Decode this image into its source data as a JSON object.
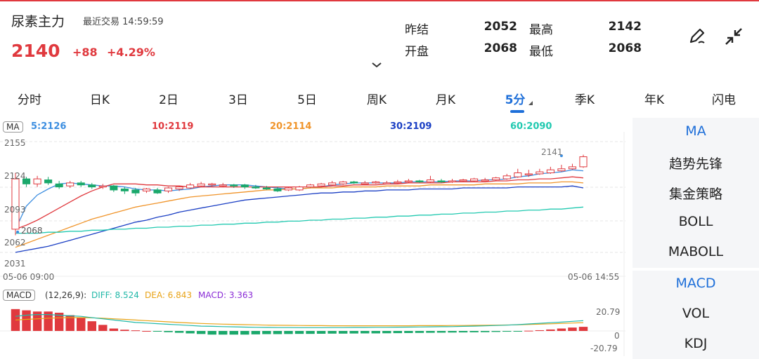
{
  "header": {
    "title": "尿素主力",
    "status": "最近交易  14:59:59",
    "price": "2140",
    "change": "+88",
    "change_pct": "+4.29%",
    "quote": {
      "prev_settle_label": "昨结",
      "prev_settle": "2052",
      "open_label": "开盘",
      "open": "2068",
      "high_label": "最高",
      "high": "2142",
      "low_label": "最低",
      "low": "2068"
    },
    "expand_icon": "chevron-down-icon",
    "draw_icon": "pen-icon",
    "collapse_icon": "shrink-icon"
  },
  "tabs": [
    "分时",
    "日K",
    "2日",
    "3日",
    "5日",
    "周K",
    "月K",
    "5分",
    "季K",
    "年K",
    "闪电"
  ],
  "active_tab": "5分",
  "ma_legend": {
    "badge": "MA",
    "items": [
      {
        "label": "5:2126",
        "color": "#3c8ee0"
      },
      {
        "label": "10:2119",
        "color": "#e0393e"
      },
      {
        "label": "20:2114",
        "color": "#f0942a"
      },
      {
        "label": "30:2109",
        "color": "#1b3fc4"
      },
      {
        "label": "60:2090",
        "color": "#21c9b0"
      }
    ]
  },
  "price_axis": {
    "top": "2155",
    "mid": "2124",
    "low1": "2093",
    "low2": "2062",
    "bottom": "2031"
  },
  "annotations": {
    "last": "2141",
    "low": "2068"
  },
  "time_axis": {
    "start": "05-06 09:00",
    "end": "05-06 14:55"
  },
  "macd_legend": {
    "badge": "MACD",
    "params": "(12,26,9):",
    "diff": "DIFF: 8.524",
    "dea": "DEA: 6.843",
    "macd": "MACD: 3.363",
    "diff_color": "#21b8a8",
    "dea_color": "#e8a317",
    "macd_color": "#8a2bd6"
  },
  "macd_axis": {
    "top": "20.79",
    "zero": "0",
    "bottom": "-20.79"
  },
  "side_panel": {
    "main": [
      "MA",
      "趋势先锋",
      "集金策略",
      "BOLL",
      "MABOLL"
    ],
    "sub": [
      "MACD",
      "VOL",
      "KDJ"
    ],
    "active_main": "MA",
    "active_sub": "MACD"
  },
  "colors": {
    "up": "#e0393e",
    "down": "#1aa86b",
    "accent": "#1e6fd9"
  },
  "chart_data": {
    "type": "candlestick",
    "ylim": [
      2031,
      2155
    ],
    "candles": [
      {
        "o": 2068,
        "c": 2118,
        "h": 2124,
        "l": 2062
      },
      {
        "o": 2118,
        "c": 2113,
        "h": 2120,
        "l": 2110
      },
      {
        "o": 2113,
        "c": 2118,
        "h": 2121,
        "l": 2110
      },
      {
        "o": 2117,
        "c": 2114,
        "h": 2120,
        "l": 2112
      },
      {
        "o": 2113,
        "c": 2110,
        "h": 2116,
        "l": 2108
      },
      {
        "o": 2111,
        "c": 2114,
        "h": 2116,
        "l": 2109
      },
      {
        "o": 2114,
        "c": 2112,
        "h": 2116,
        "l": 2110
      },
      {
        "o": 2112,
        "c": 2110,
        "h": 2114,
        "l": 2108
      },
      {
        "o": 2110,
        "c": 2111,
        "h": 2113,
        "l": 2108
      },
      {
        "o": 2111,
        "c": 2107,
        "h": 2112,
        "l": 2105
      },
      {
        "o": 2108,
        "c": 2106,
        "h": 2110,
        "l": 2103
      },
      {
        "o": 2107,
        "c": 2104,
        "h": 2109,
        "l": 2101
      },
      {
        "o": 2106,
        "c": 2108,
        "h": 2109,
        "l": 2104
      },
      {
        "o": 2107,
        "c": 2104,
        "h": 2109,
        "l": 2103
      },
      {
        "o": 2106,
        "c": 2109,
        "h": 2110,
        "l": 2104
      },
      {
        "o": 2108,
        "c": 2110,
        "h": 2111,
        "l": 2106
      },
      {
        "o": 2109,
        "c": 2112,
        "h": 2114,
        "l": 2108
      },
      {
        "o": 2111,
        "c": 2113,
        "h": 2115,
        "l": 2110
      },
      {
        "o": 2112,
        "c": 2113,
        "h": 2114,
        "l": 2110
      },
      {
        "o": 2112,
        "c": 2112,
        "h": 2114,
        "l": 2110
      },
      {
        "o": 2112,
        "c": 2111,
        "h": 2113,
        "l": 2109
      },
      {
        "o": 2112,
        "c": 2110,
        "h": 2113,
        "l": 2108
      },
      {
        "o": 2110,
        "c": 2109,
        "h": 2112,
        "l": 2108
      },
      {
        "o": 2109,
        "c": 2108,
        "h": 2111,
        "l": 2107
      },
      {
        "o": 2108,
        "c": 2106,
        "h": 2110,
        "l": 2105
      },
      {
        "o": 2107,
        "c": 2109,
        "h": 2110,
        "l": 2106
      },
      {
        "o": 2107,
        "c": 2110,
        "h": 2111,
        "l": 2106
      },
      {
        "o": 2110,
        "c": 2112,
        "h": 2113,
        "l": 2109
      },
      {
        "o": 2111,
        "c": 2113,
        "h": 2114,
        "l": 2110
      },
      {
        "o": 2112,
        "c": 2114,
        "h": 2116,
        "l": 2111
      },
      {
        "o": 2113,
        "c": 2115,
        "h": 2116,
        "l": 2112
      },
      {
        "o": 2115,
        "c": 2114,
        "h": 2116,
        "l": 2113
      },
      {
        "o": 2114,
        "c": 2114,
        "h": 2116,
        "l": 2113
      },
      {
        "o": 2114,
        "c": 2115,
        "h": 2116,
        "l": 2113
      },
      {
        "o": 2114,
        "c": 2114,
        "h": 2116,
        "l": 2113
      },
      {
        "o": 2114,
        "c": 2115,
        "h": 2117,
        "l": 2113
      },
      {
        "o": 2115,
        "c": 2116,
        "h": 2118,
        "l": 2114
      },
      {
        "o": 2116,
        "c": 2115,
        "h": 2117,
        "l": 2114
      },
      {
        "o": 2115,
        "c": 2117,
        "h": 2121,
        "l": 2114
      },
      {
        "o": 2116,
        "c": 2115,
        "h": 2118,
        "l": 2114
      },
      {
        "o": 2115,
        "c": 2116,
        "h": 2118,
        "l": 2114
      },
      {
        "o": 2116,
        "c": 2117,
        "h": 2118,
        "l": 2115
      },
      {
        "o": 2116,
        "c": 2118,
        "h": 2119,
        "l": 2115
      },
      {
        "o": 2117,
        "c": 2117,
        "h": 2119,
        "l": 2116
      },
      {
        "o": 2117,
        "c": 2119,
        "h": 2120,
        "l": 2116
      },
      {
        "o": 2118,
        "c": 2121,
        "h": 2123,
        "l": 2117
      },
      {
        "o": 2120,
        "c": 2124,
        "h": 2128,
        "l": 2119
      },
      {
        "o": 2122,
        "c": 2123,
        "h": 2127,
        "l": 2120
      },
      {
        "o": 2123,
        "c": 2125,
        "h": 2128,
        "l": 2122
      },
      {
        "o": 2124,
        "c": 2127,
        "h": 2130,
        "l": 2123
      },
      {
        "o": 2126,
        "c": 2128,
        "h": 2132,
        "l": 2125
      },
      {
        "o": 2128,
        "c": 2130,
        "h": 2133,
        "l": 2127
      },
      {
        "o": 2130,
        "c": 2140,
        "h": 2142,
        "l": 2129
      }
    ],
    "ma": [
      {
        "name": "MA5",
        "color": "#3c8ee0",
        "values": [
          2068,
          2091,
          2102,
          2108,
          2113,
          2114,
          2113,
          2112,
          2111,
          2111,
          2110,
          2108,
          2107,
          2107,
          2106,
          2107,
          2108,
          2110,
          2111,
          2112,
          2112,
          2112,
          2111,
          2110,
          2109,
          2108,
          2108,
          2109,
          2110,
          2112,
          2113,
          2114,
          2114,
          2114,
          2114,
          2114,
          2115,
          2115,
          2115,
          2115,
          2116,
          2116,
          2116,
          2117,
          2117,
          2118,
          2120,
          2121,
          2123,
          2124,
          2125,
          2127,
          2126
        ]
      },
      {
        "name": "MA10",
        "color": "#e0393e",
        "values": [
          2068,
          2072,
          2077,
          2083,
          2089,
          2095,
          2101,
          2106,
          2110,
          2113,
          2113,
          2113,
          2112,
          2112,
          2111,
          2111,
          2110,
          2110,
          2110,
          2110,
          2110,
          2110,
          2110,
          2110,
          2110,
          2110,
          2110,
          2110,
          2110,
          2111,
          2111,
          2112,
          2112,
          2112,
          2113,
          2113,
          2114,
          2114,
          2114,
          2114,
          2115,
          2115,
          2115,
          2115,
          2116,
          2116,
          2117,
          2117,
          2118,
          2118,
          2119,
          2120,
          2119
        ]
      },
      {
        "name": "MA20",
        "color": "#f0942a",
        "values": [
          2050,
          2054,
          2058,
          2062,
          2066,
          2070,
          2074,
          2078,
          2081,
          2084,
          2087,
          2090,
          2092,
          2094,
          2096,
          2098,
          2100,
          2101,
          2102,
          2103,
          2104,
          2105,
          2106,
          2107,
          2107,
          2108,
          2108,
          2109,
          2109,
          2109,
          2110,
          2110,
          2110,
          2110,
          2111,
          2111,
          2111,
          2111,
          2112,
          2112,
          2112,
          2112,
          2112,
          2113,
          2113,
          2113,
          2113,
          2114,
          2114,
          2114,
          2115,
          2115,
          2114
        ]
      },
      {
        "name": "MA30",
        "color": "#1b3fc4",
        "values": [
          2045,
          2047,
          2049,
          2051,
          2054,
          2057,
          2060,
          2063,
          2066,
          2069,
          2072,
          2075,
          2077,
          2080,
          2082,
          2085,
          2087,
          2089,
          2091,
          2093,
          2095,
          2097,
          2098,
          2099,
          2100,
          2101,
          2102,
          2103,
          2104,
          2104,
          2105,
          2105,
          2106,
          2106,
          2107,
          2107,
          2107,
          2108,
          2108,
          2108,
          2108,
          2109,
          2109,
          2109,
          2109,
          2109,
          2110,
          2110,
          2110,
          2110,
          2110,
          2111,
          2109
        ]
      },
      {
        "name": "MA60",
        "color": "#21c9b0",
        "values": [
          2064,
          2064,
          2064,
          2065,
          2065,
          2066,
          2066,
          2067,
          2067,
          2068,
          2068,
          2069,
          2069,
          2070,
          2070,
          2071,
          2071,
          2072,
          2072,
          2073,
          2073,
          2074,
          2074,
          2075,
          2075,
          2076,
          2076,
          2077,
          2077,
          2078,
          2078,
          2079,
          2079,
          2080,
          2080,
          2081,
          2081,
          2082,
          2082,
          2083,
          2083,
          2084,
          2084,
          2085,
          2085,
          2086,
          2086,
          2087,
          2087,
          2088,
          2088,
          2089,
          2090
        ]
      }
    ],
    "macd": {
      "ylim": [
        -20.79,
        20.79
      ],
      "hist": [
        18,
        17,
        16,
        16,
        15,
        13,
        11,
        8,
        5,
        2,
        1,
        0.5,
        0,
        -0.5,
        -1,
        -1.5,
        -2,
        -2.5,
        -3,
        -3,
        -3,
        -3,
        -2.8,
        -2.6,
        -2.6,
        -2.5,
        -2.4,
        -2.4,
        -2.3,
        -2.2,
        -2.2,
        -2.1,
        -2.0,
        -2.0,
        -1.9,
        -1.8,
        -1.7,
        -1.6,
        -1.5,
        -1.4,
        -1.3,
        -1.2,
        -1.1,
        -1.0,
        -0.8,
        -0.6,
        -0.4,
        0.2,
        0.6,
        1.2,
        2.0,
        2.8,
        3.4
      ],
      "diff": [
        12,
        13,
        13.5,
        13.5,
        13,
        12.5,
        12,
        11,
        10,
        9,
        8,
        7,
        6.5,
        6,
        5.5,
        5,
        4.5,
        4,
        3.8,
        3.6,
        3.4,
        3.2,
        3.0,
        2.9,
        2.8,
        2.8,
        2.7,
        2.7,
        2.7,
        2.8,
        2.8,
        2.9,
        2.9,
        3.0,
        3.0,
        3.1,
        3.2,
        3.3,
        3.4,
        3.5,
        3.6,
        3.8,
        4.0,
        4.2,
        4.5,
        4.8,
        5.2,
        5.8,
        6.3,
        6.8,
        7.3,
        7.9,
        8.5
      ],
      "dea": [
        9,
        9.5,
        10,
        10.5,
        10.8,
        11,
        11,
        10.8,
        10.5,
        10,
        9.5,
        9,
        8.5,
        8,
        7.5,
        7,
        6.6,
        6.2,
        5.9,
        5.6,
        5.4,
        5.2,
        5.0,
        4.8,
        4.7,
        4.6,
        4.5,
        4.4,
        4.4,
        4.3,
        4.3,
        4.3,
        4.3,
        4.3,
        4.3,
        4.3,
        4.3,
        4.4,
        4.4,
        4.4,
        4.5,
        4.5,
        4.6,
        4.7,
        4.8,
        4.9,
        5.0,
        5.3,
        5.6,
        5.9,
        6.2,
        6.5,
        6.8
      ]
    }
  }
}
